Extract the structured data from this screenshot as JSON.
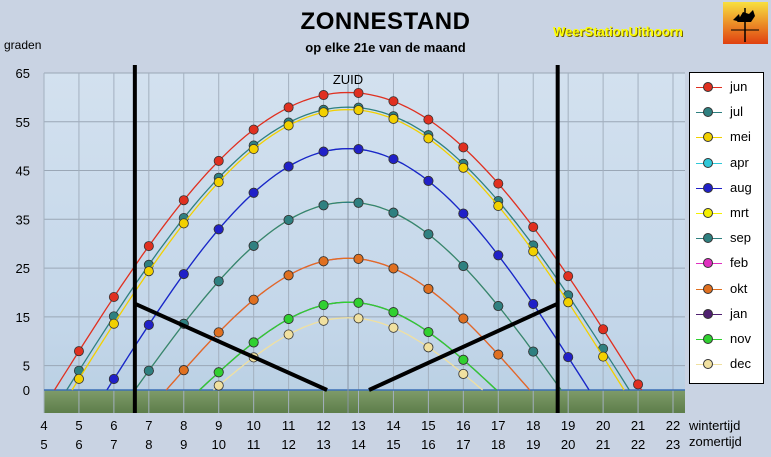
{
  "header": {
    "title": "ZONNESTAND",
    "subtitle": "op elke 21e van de maand",
    "station": "WeerStationUithoorn",
    "y_axis_label": "graden",
    "south_label": "ZUID",
    "wintertijd_label": "wintertijd",
    "zomertijd_label": "zomertijd"
  },
  "colors": {
    "plot_background": "#c6d9ea",
    "ground": "#6f8f59",
    "horizon_line": "#3b6fb5"
  },
  "chart_data": {
    "type": "line",
    "title": "ZONNESTAND",
    "subtitle": "op elke 21e van de maand",
    "ylabel": "graden",
    "ylim": [
      -3,
      65
    ],
    "xlim": [
      4,
      22
    ],
    "yticks": [
      0,
      5,
      15,
      25,
      35,
      45,
      55,
      65
    ],
    "x_ticks_wintertijd": [
      4,
      5,
      6,
      7,
      8,
      9,
      10,
      11,
      12,
      13,
      14,
      15,
      16,
      17,
      18,
      19,
      20,
      21,
      22
    ],
    "x_ticks_zomertijd": [
      5,
      6,
      7,
      8,
      9,
      10,
      11,
      12,
      13,
      14,
      15,
      16,
      17,
      18,
      19,
      20,
      21,
      22,
      23
    ],
    "grid": true,
    "legend_position": "right",
    "solar_noon_wintertijd": 12.7,
    "series": [
      {
        "name": "jun",
        "color": "#e03020",
        "noon": 61.0,
        "daylength": 16.8
      },
      {
        "name": "jul",
        "color": "#2f8080",
        "noon": 58.0,
        "daylength": 16.1
      },
      {
        "name": "mei",
        "color": "#f2d000",
        "noon": 57.5,
        "daylength": 15.8
      },
      {
        "name": "apr",
        "color": "#30c8d8",
        "noon": 49.5,
        "daylength": 13.8
      },
      {
        "name": "aug",
        "color": "#2020c8",
        "noon": 49.5,
        "daylength": 13.8
      },
      {
        "name": "mrt",
        "color": "#f4f000",
        "noon": 38.5,
        "daylength": 12.2
      },
      {
        "name": "sep",
        "color": "#2f8080",
        "noon": 38.5,
        "daylength": 12.2
      },
      {
        "name": "feb",
        "color": "#e030c0",
        "noon": 27.0,
        "daylength": 10.4
      },
      {
        "name": "okt",
        "color": "#e07020",
        "noon": 27.0,
        "daylength": 10.4
      },
      {
        "name": "jan",
        "color": "#502070",
        "noon": 18.0,
        "daylength": 8.5
      },
      {
        "name": "nov",
        "color": "#30d030",
        "noon": 18.0,
        "daylength": 8.5
      },
      {
        "name": "dec",
        "color": "#f0e0a0",
        "noon": 14.8,
        "daylength": 7.7
      }
    ],
    "vertical_markers": [
      6.6,
      18.7
    ],
    "annotation_lines": [
      {
        "from": [
          6.6,
          17.7
        ],
        "to": [
          12.1,
          0
        ]
      },
      {
        "from": [
          13.3,
          0
        ],
        "to": [
          18.7,
          17.7
        ]
      }
    ]
  }
}
